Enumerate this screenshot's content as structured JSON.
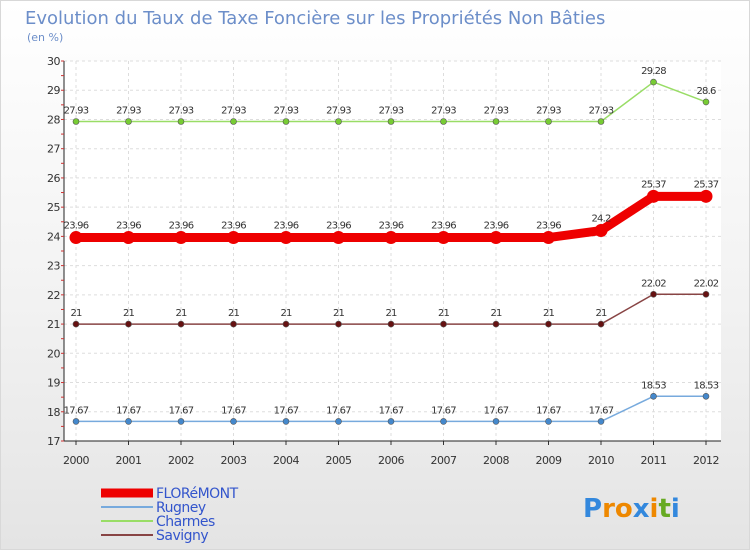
{
  "chart_data": {
    "type": "line",
    "title": "Evolution du Taux de Taxe Foncière sur les Propriétés Non Bâties",
    "subtitle": "(en %)",
    "xlabel": "",
    "ylabel": "",
    "x": [
      "2000",
      "2001",
      "2002",
      "2003",
      "2004",
      "2005",
      "2006",
      "2007",
      "2008",
      "2009",
      "2010",
      "2011",
      "2012"
    ],
    "ylim": [
      17,
      30
    ],
    "yticks": [
      "17",
      "18",
      "19",
      "20",
      "21",
      "22",
      "23",
      "24",
      "25",
      "26",
      "27",
      "28",
      "29",
      "30"
    ],
    "grid": true,
    "legend_position": "bottom-left",
    "series": [
      {
        "name": "Charmes",
        "color": "#99dd66",
        "marker": "#77cc33",
        "values": [
          27.93,
          27.93,
          27.93,
          27.93,
          27.93,
          27.93,
          27.93,
          27.93,
          27.93,
          27.93,
          27.93,
          29.28,
          28.6
        ],
        "labels": [
          "27.93",
          "27.93",
          "27.93",
          "27.93",
          "27.93",
          "27.93",
          "27.93",
          "27.93",
          "27.93",
          "27.93",
          "27.93",
          "29.28",
          "28.6"
        ]
      },
      {
        "name": "FLORéMONT",
        "color": "#ee0000",
        "marker": "#ee0000",
        "values": [
          23.96,
          23.96,
          23.96,
          23.96,
          23.96,
          23.96,
          23.96,
          23.96,
          23.96,
          23.96,
          24.2,
          25.37,
          25.37
        ],
        "labels": [
          "23.96",
          "23.96",
          "23.96",
          "23.96",
          "23.96",
          "23.96",
          "23.96",
          "23.96",
          "23.96",
          "23.96",
          "24.2",
          "25.37",
          "25.37"
        ]
      },
      {
        "name": "Savigny",
        "color": "#884444",
        "marker": "#661111",
        "values": [
          21,
          21,
          21,
          21,
          21,
          21,
          21,
          21,
          21,
          21,
          21,
          22.02,
          22.02
        ],
        "labels": [
          "21",
          "21",
          "21",
          "21",
          "21",
          "21",
          "21",
          "21",
          "21",
          "21",
          "21",
          "22.02",
          "22.02"
        ]
      },
      {
        "name": "Rugney",
        "color": "#77aadd",
        "marker": "#4488cc",
        "values": [
          17.67,
          17.67,
          17.67,
          17.67,
          17.67,
          17.67,
          17.67,
          17.67,
          17.67,
          17.67,
          17.67,
          18.53,
          18.53
        ],
        "labels": [
          "17.67",
          "17.67",
          "17.67",
          "17.67",
          "17.67",
          "17.67",
          "17.67",
          "17.67",
          "17.67",
          "17.67",
          "17.67",
          "18.53",
          "18.53"
        ]
      }
    ],
    "legend": [
      {
        "name": "FLORéMONT",
        "color": "#ee0000",
        "text_color": "#3355cc"
      },
      {
        "name": "Rugney",
        "color": "#77aadd",
        "text_color": "#3355cc"
      },
      {
        "name": "Charmes",
        "color": "#99dd66",
        "text_color": "#3355cc"
      },
      {
        "name": "Savigny",
        "color": "#884444",
        "text_color": "#3355cc"
      }
    ]
  },
  "logo": {
    "text": "Proxiti",
    "letters": [
      "P",
      "r",
      "o",
      "x",
      "i",
      "t",
      "i"
    ],
    "colors": [
      "#3388dd",
      "#ee8800",
      "#ee8800",
      "#3388dd",
      "#ee8800",
      "#66aa22",
      "#3388dd"
    ]
  }
}
